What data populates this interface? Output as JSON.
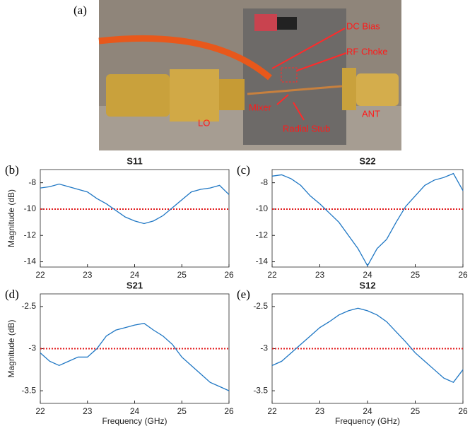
{
  "photo": {
    "panel": "(a)",
    "labels": [
      "DC Bias",
      "RF Choke",
      "Mixer",
      "Radial Stub",
      "LO",
      "ANT"
    ]
  },
  "chart_data": [
    {
      "type": "line",
      "panel": "(b)",
      "title": "S11",
      "ylabel": "Magnitude (dB)",
      "xlim": [
        22,
        26
      ],
      "xticks": [
        22,
        23,
        24,
        25,
        26
      ],
      "ylim": [
        -14.4,
        -7
      ],
      "yticks": [
        -8,
        -10,
        -12,
        -14
      ],
      "reference_line": -10,
      "reference_color": "#e31a1c",
      "x": [
        22,
        22.2,
        22.4,
        22.6,
        22.8,
        23,
        23.2,
        23.4,
        23.6,
        23.8,
        24,
        24.2,
        24.4,
        24.6,
        24.8,
        25,
        25.2,
        25.4,
        25.6,
        25.8,
        26
      ],
      "series": [
        {
          "color": "#1f77c4",
          "values": [
            -8.4,
            -8.3,
            -8.1,
            -8.3,
            -8.5,
            -8.7,
            -9.2,
            -9.6,
            -10.1,
            -10.6,
            -10.9,
            -11.1,
            -10.9,
            -10.5,
            -9.9,
            -9.3,
            -8.7,
            -8.5,
            -8.4,
            -8.2,
            -8.9
          ]
        }
      ]
    },
    {
      "type": "line",
      "panel": "(c)",
      "title": "S22",
      "xlim": [
        22,
        26
      ],
      "xticks": [
        22,
        23,
        24,
        25,
        26
      ],
      "ylim": [
        -14.4,
        -7
      ],
      "yticks": [
        -8,
        -10,
        -12,
        -14
      ],
      "reference_line": -10,
      "reference_color": "#e31a1c",
      "x": [
        22,
        22.2,
        22.4,
        22.6,
        22.8,
        23,
        23.2,
        23.4,
        23.6,
        23.8,
        24,
        24.2,
        24.4,
        24.6,
        24.8,
        25,
        25.2,
        25.4,
        25.6,
        25.8,
        26
      ],
      "series": [
        {
          "color": "#1f77c4",
          "values": [
            -7.5,
            -7.4,
            -7.7,
            -8.2,
            -9.0,
            -9.6,
            -10.3,
            -11.0,
            -12.0,
            -13.0,
            -14.3,
            -13.0,
            -12.3,
            -11.0,
            -9.8,
            -9.0,
            -8.2,
            -7.8,
            -7.6,
            -7.3,
            -8.6
          ]
        }
      ]
    },
    {
      "type": "line",
      "panel": "(d)",
      "title": "S21",
      "ylabel": "Magnitude (dB)",
      "xlabel": "Frequency (GHz)",
      "xlim": [
        22,
        26
      ],
      "xticks": [
        22,
        23,
        24,
        25,
        26
      ],
      "ylim": [
        -3.65,
        -2.35
      ],
      "yticks": [
        -2.5,
        -3,
        -3.5
      ],
      "reference_line": -3,
      "reference_color": "#e31a1c",
      "x": [
        22,
        22.2,
        22.4,
        22.6,
        22.8,
        23,
        23.2,
        23.4,
        23.6,
        23.8,
        24,
        24.2,
        24.4,
        24.6,
        24.8,
        25,
        25.2,
        25.4,
        25.6,
        25.8,
        26
      ],
      "series": [
        {
          "color": "#1f77c4",
          "values": [
            -3.05,
            -3.15,
            -3.2,
            -3.15,
            -3.1,
            -3.1,
            -3.0,
            -2.85,
            -2.78,
            -2.75,
            -2.72,
            -2.7,
            -2.78,
            -2.85,
            -2.95,
            -3.1,
            -3.2,
            -3.3,
            -3.4,
            -3.45,
            -3.5
          ]
        }
      ]
    },
    {
      "type": "line",
      "panel": "(e)",
      "title": "S12",
      "xlabel": "Frequency (GHz)",
      "xlim": [
        22,
        26
      ],
      "xticks": [
        22,
        23,
        24,
        25,
        26
      ],
      "ylim": [
        -3.65,
        -2.35
      ],
      "yticks": [
        -2.5,
        -3,
        -3.5
      ],
      "reference_line": -3,
      "reference_color": "#e31a1c",
      "x": [
        22,
        22.2,
        22.4,
        22.6,
        22.8,
        23,
        23.2,
        23.4,
        23.6,
        23.8,
        24,
        24.2,
        24.4,
        24.6,
        24.8,
        25,
        25.2,
        25.4,
        25.6,
        25.8,
        26
      ],
      "series": [
        {
          "color": "#1f77c4",
          "values": [
            -3.2,
            -3.15,
            -3.05,
            -2.95,
            -2.85,
            -2.75,
            -2.68,
            -2.6,
            -2.55,
            -2.52,
            -2.55,
            -2.6,
            -2.68,
            -2.8,
            -2.92,
            -3.05,
            -3.15,
            -3.25,
            -3.35,
            -3.4,
            -3.25
          ]
        }
      ]
    }
  ]
}
